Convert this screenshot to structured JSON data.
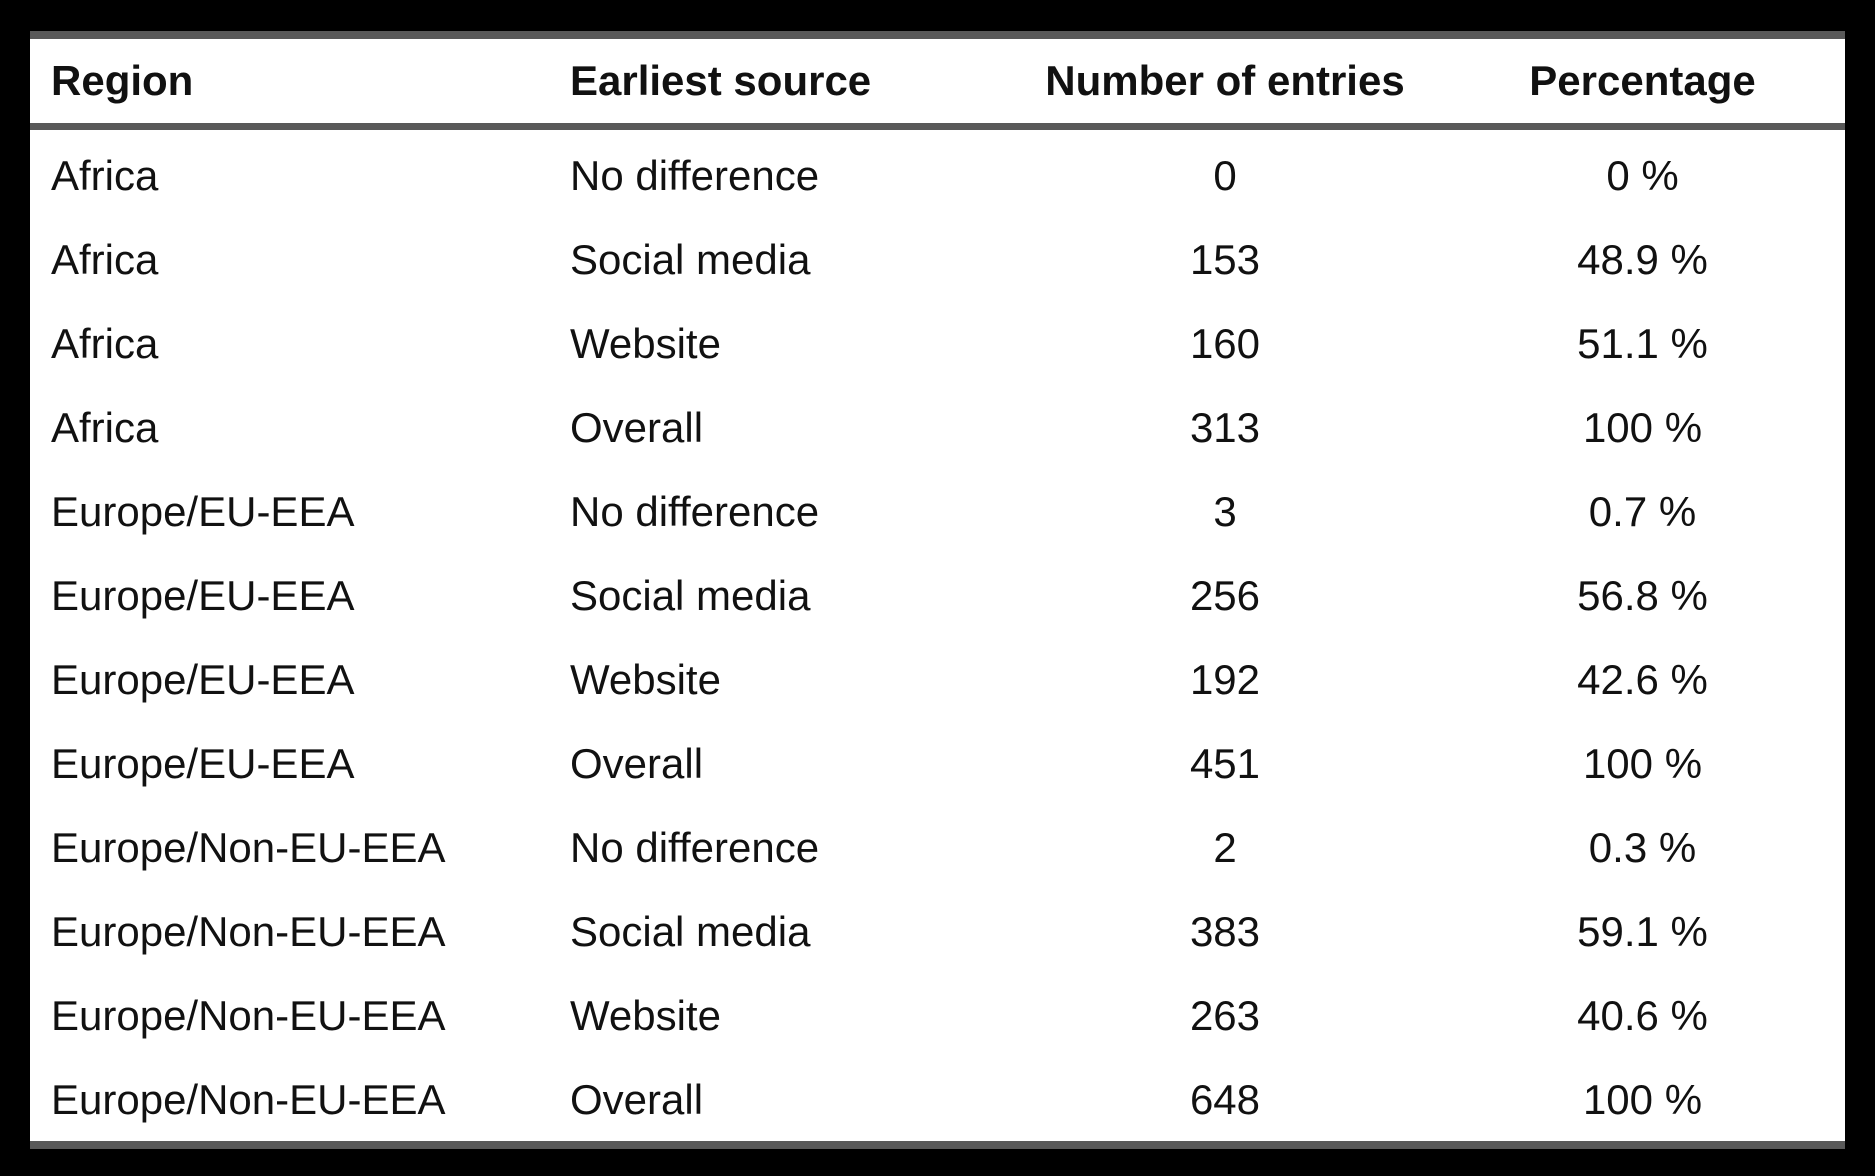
{
  "table": {
    "headers": [
      "Region",
      "Earliest source",
      "Number of entries",
      "Percentage"
    ],
    "rows": [
      [
        "Africa",
        "No difference",
        "0",
        "0 %"
      ],
      [
        "Africa",
        "Social media",
        "153",
        "48.9 %"
      ],
      [
        "Africa",
        "Website",
        "160",
        "51.1 %"
      ],
      [
        "Africa",
        "Overall",
        "313",
        "100 %"
      ],
      [
        "Europe/EU-EEA",
        "No difference",
        "3",
        "0.7 %"
      ],
      [
        "Europe/EU-EEA",
        "Social media",
        "256",
        "56.8 %"
      ],
      [
        "Europe/EU-EEA",
        "Website",
        "192",
        "42.6 %"
      ],
      [
        "Europe/EU-EEA",
        "Overall",
        "451",
        "100 %"
      ],
      [
        "Europe/Non-EU-EEA",
        "No difference",
        "2",
        "0.3 %"
      ],
      [
        "Europe/Non-EU-EEA",
        "Social media",
        "383",
        "59.1 %"
      ],
      [
        "Europe/Non-EU-EEA",
        "Website",
        "263",
        "40.6 %"
      ],
      [
        "Europe/Non-EU-EEA",
        "Overall",
        "648",
        "100 %"
      ]
    ]
  }
}
